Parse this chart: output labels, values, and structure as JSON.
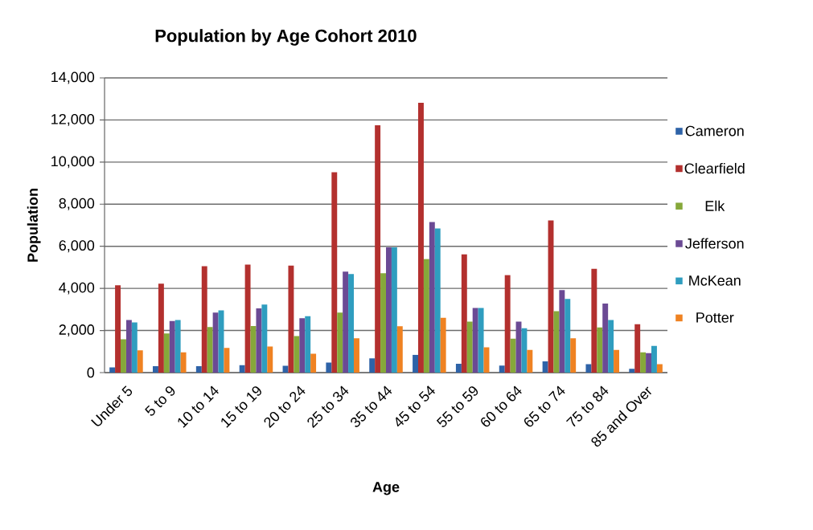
{
  "chart_data": {
    "type": "bar",
    "title": "Population by Age Cohort 2010",
    "xlabel": "Age",
    "ylabel": "Population",
    "categories": [
      "Under 5",
      "5 to 9",
      "10 to 14",
      "15 to 19",
      "20 to 24",
      "25 to 34",
      "35 to 44",
      "45 to 54",
      "55 to 59",
      "60 to 64",
      "65 to 74",
      "75 to 84",
      "85 and Over"
    ],
    "series": [
      {
        "name": "Cameron",
        "color": "#2e63a8",
        "values": [
          250,
          300,
          300,
          350,
          320,
          480,
          680,
          850,
          420,
          330,
          530,
          400,
          180
        ]
      },
      {
        "name": "Clearfield",
        "color": "#b3302e",
        "values": [
          4150,
          4220,
          5050,
          5130,
          5080,
          9520,
          11750,
          12820,
          5620,
          4630,
          7230,
          4930,
          2300
        ]
      },
      {
        "name": "Elk",
        "color": "#86a83a",
        "values": [
          1580,
          1860,
          2160,
          2210,
          1740,
          2850,
          4720,
          5400,
          2420,
          1610,
          2920,
          2150,
          960
        ]
      },
      {
        "name": "Jefferson",
        "color": "#6b4a94",
        "values": [
          2500,
          2450,
          2850,
          3050,
          2580,
          4800,
          5950,
          7150,
          3070,
          2420,
          3920,
          3280,
          920
        ]
      },
      {
        "name": "McKean",
        "color": "#2f9dbf",
        "values": [
          2380,
          2500,
          2960,
          3230,
          2680,
          4680,
          5950,
          6850,
          3070,
          2110,
          3500,
          2500,
          1270
        ]
      },
      {
        "name": "Potter",
        "color": "#ef8222",
        "values": [
          1060,
          960,
          1170,
          1240,
          900,
          1630,
          2200,
          2610,
          1200,
          1080,
          1630,
          1080,
          400
        ]
      }
    ],
    "ylim": [
      0,
      14000
    ],
    "yticks": [
      {
        "value": 0,
        "label": "0"
      },
      {
        "value": 2000,
        "label": "2,000"
      },
      {
        "value": 4000,
        "label": "4,000"
      },
      {
        "value": 6000,
        "label": "6,000"
      },
      {
        "value": 8000,
        "label": "8,000"
      },
      {
        "value": 10000,
        "label": "10,000"
      },
      {
        "value": 12000,
        "label": "12,000"
      },
      {
        "value": 14000,
        "label": "14,000"
      }
    ],
    "grid": "y",
    "legend": "right"
  }
}
